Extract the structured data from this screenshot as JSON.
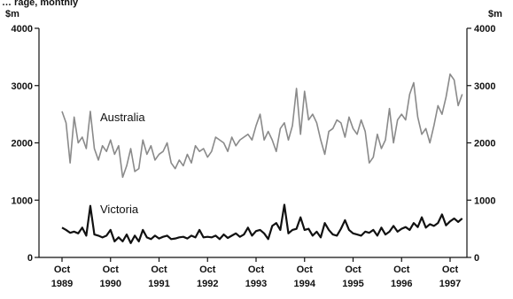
{
  "cut_off_text": "… rage, monthly",
  "chart_data": {
    "type": "line",
    "title": "",
    "xlabel": "",
    "ylabel": "$m",
    "y_unit_left": "$m",
    "y_unit_right": "$m",
    "ylim": [
      0,
      4000
    ],
    "yticks": [
      0,
      1000,
      2000,
      3000,
      4000
    ],
    "grid": false,
    "xlim": [
      "1989-10",
      "1997-10"
    ],
    "x_ticks": [
      {
        "month": "1989-10",
        "line1": "Oct",
        "line2": "1989"
      },
      {
        "month": "1990-10",
        "line1": "Oct",
        "line2": "1990"
      },
      {
        "month": "1991-10",
        "line1": "Oct",
        "line2": "1991"
      },
      {
        "month": "1992-10",
        "line1": "Oct",
        "line2": "1992"
      },
      {
        "month": "1993-10",
        "line1": "Oct",
        "line2": "1993"
      },
      {
        "month": "1994-10",
        "line1": "Oct",
        "line2": "1994"
      },
      {
        "month": "1995-10",
        "line1": "Oct",
        "line2": "1995"
      },
      {
        "month": "1996-10",
        "line1": "Oct",
        "line2": "1996"
      },
      {
        "month": "1997-10",
        "line1": "Oct",
        "line2": "1997"
      }
    ],
    "series": [
      {
        "name": "Australia",
        "color": "#8a8a8a",
        "start": "1989-10",
        "values": [
          2550,
          2350,
          1650,
          2450,
          2000,
          2100,
          1900,
          2550,
          1900,
          1700,
          1950,
          1850,
          2050,
          1800,
          1950,
          1400,
          1600,
          1900,
          1500,
          1550,
          2050,
          1800,
          1950,
          1700,
          1800,
          1850,
          2000,
          1650,
          1550,
          1700,
          1600,
          1800,
          1650,
          1950,
          1850,
          1900,
          1750,
          1850,
          2100,
          2050,
          2000,
          1850,
          2100,
          1950,
          2050,
          2100,
          2150,
          2050,
          2300,
          2500,
          2050,
          2200,
          2050,
          1850,
          2250,
          2350,
          2050,
          2300,
          2950,
          2150,
          2900,
          2400,
          2500,
          2350,
          2050,
          1800,
          2200,
          2250,
          2400,
          2350,
          2100,
          2450,
          2250,
          2150,
          2400,
          2200,
          1650,
          1750,
          2150,
          1900,
          2050,
          2600,
          2000,
          2400,
          2500,
          2400,
          2850,
          3050,
          2450,
          2150,
          2250,
          2000,
          2300,
          2650,
          2500,
          2800,
          3200,
          3100,
          2650,
          2850
        ]
      },
      {
        "name": "Victoria",
        "color": "#111111",
        "start": "1989-10",
        "values": [
          520,
          480,
          430,
          450,
          420,
          520,
          380,
          900,
          400,
          380,
          350,
          380,
          480,
          280,
          350,
          280,
          400,
          250,
          380,
          280,
          480,
          350,
          320,
          380,
          330,
          360,
          380,
          320,
          330,
          350,
          360,
          330,
          380,
          350,
          480,
          350,
          360,
          350,
          380,
          320,
          400,
          340,
          380,
          420,
          360,
          400,
          520,
          380,
          460,
          480,
          420,
          320,
          550,
          600,
          480,
          920,
          420,
          480,
          500,
          700,
          480,
          500,
          380,
          450,
          350,
          600,
          480,
          400,
          380,
          500,
          650,
          480,
          420,
          400,
          380,
          450,
          430,
          480,
          380,
          520,
          400,
          450,
          550,
          450,
          500,
          530,
          480,
          600,
          530,
          700,
          520,
          580,
          550,
          600,
          750,
          560,
          630,
          680,
          620,
          680
        ]
      }
    ]
  }
}
